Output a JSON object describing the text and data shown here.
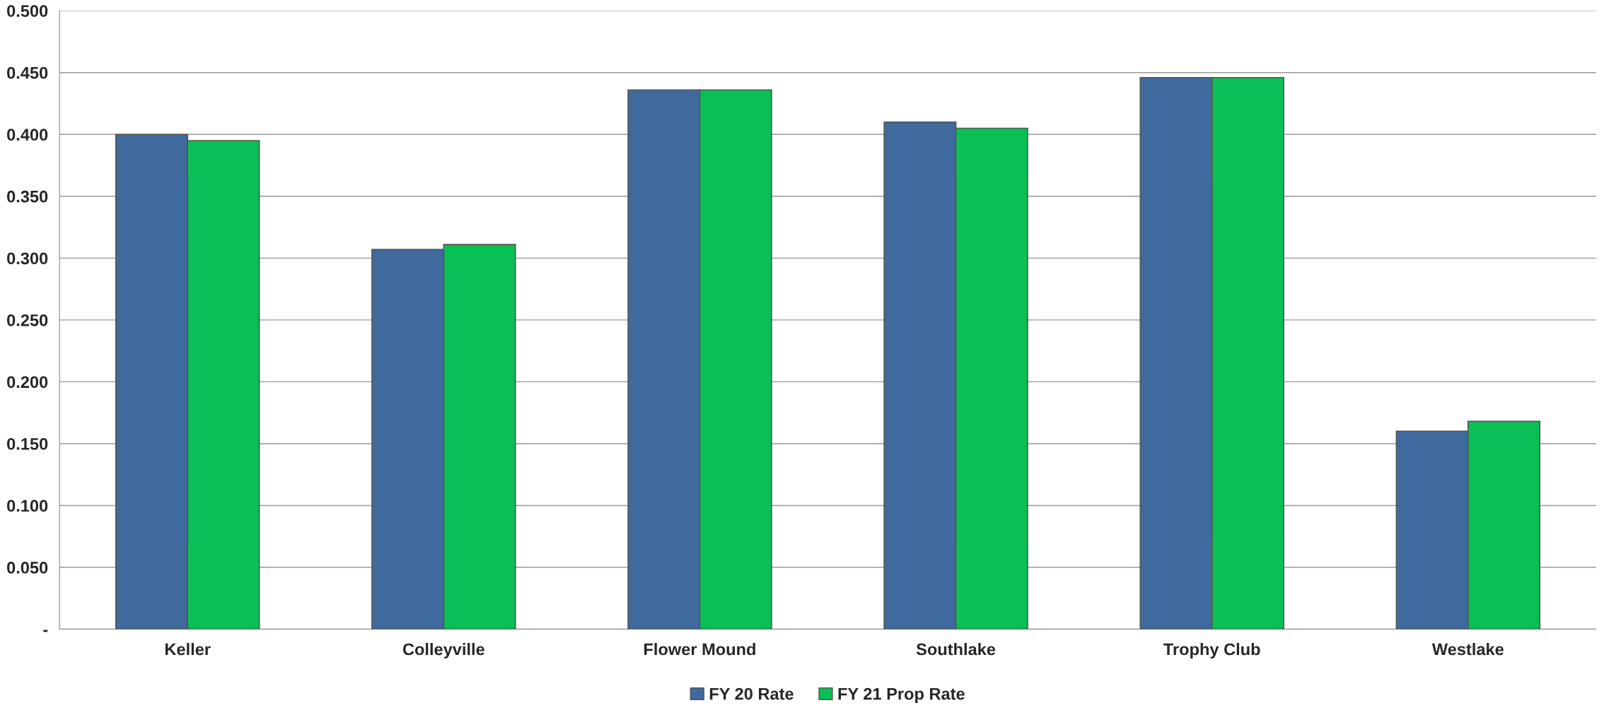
{
  "chart_data": {
    "type": "bar",
    "categories": [
      "Keller",
      "Colleyville",
      "Flower Mound",
      "Southlake",
      "Trophy Club",
      "Westlake"
    ],
    "series": [
      {
        "name": "FY 20 Rate",
        "color": "#3e6a9e",
        "values": [
          0.4,
          0.307,
          0.436,
          0.41,
          0.446,
          0.16
        ]
      },
      {
        "name": "FY 21 Prop Rate",
        "color": "#0abf53",
        "values": [
          0.395,
          0.311,
          0.436,
          0.405,
          0.446,
          0.168
        ]
      }
    ],
    "ylim": [
      0,
      0.5
    ],
    "yticks": [
      {
        "value": 0,
        "label": "-"
      },
      {
        "value": 0.05,
        "label": "0.050"
      },
      {
        "value": 0.1,
        "label": "0.100"
      },
      {
        "value": 0.15,
        "label": "0.150"
      },
      {
        "value": 0.2,
        "label": "0.200"
      },
      {
        "value": 0.25,
        "label": "0.250"
      },
      {
        "value": 0.3,
        "label": "0.300"
      },
      {
        "value": 0.35,
        "label": "0.350"
      },
      {
        "value": 0.4,
        "label": "0.400"
      },
      {
        "value": 0.45,
        "label": "0.450"
      },
      {
        "value": 0.5,
        "label": "0.500"
      }
    ],
    "grid": "y",
    "legend": "bottom"
  }
}
